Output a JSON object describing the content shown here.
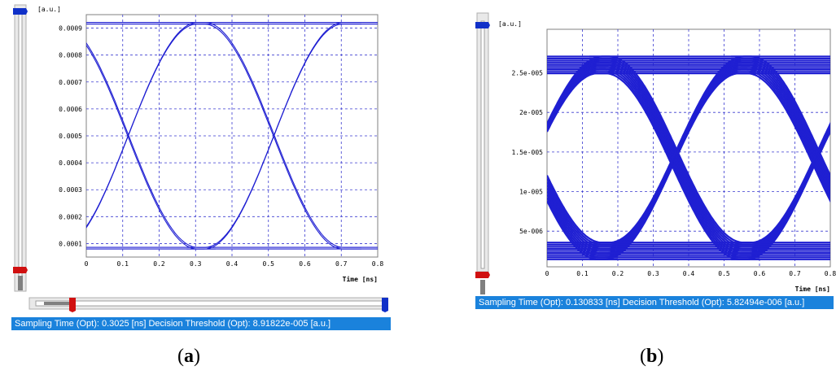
{
  "chart_data": [
    {
      "type": "line",
      "panel": "a",
      "title": "",
      "xlabel": "Time [ns]",
      "ylabel": "[a.u.]",
      "xlim": [
        0,
        0.8
      ],
      "ylim": [
        5e-05,
        0.00095
      ],
      "x_ticks": [
        "0",
        "0.1",
        "0.2",
        "0.3",
        "0.4",
        "0.5",
        "0.6",
        "0.7",
        "0.8"
      ],
      "y_ticks": [
        "0.0001",
        "0.0002",
        "0.0003",
        "0.0004",
        "0.0005",
        "0.0006",
        "0.0007",
        "0.0008",
        "0.0009"
      ],
      "y_tick_values": [
        0.0001,
        0.0002,
        0.0003,
        0.0004,
        0.0005,
        0.0006,
        0.0007,
        0.0008,
        0.0009
      ],
      "grid": true,
      "eye": {
        "low": 8.3e-05,
        "high": 0.000918,
        "crossings": [
          0.115,
          0.515
        ],
        "bit_period": 0.4,
        "color": "#1f1fd2",
        "density": "thin"
      },
      "status_text": "Sampling Time (Opt): 0.3025 [ns] Decision Threshold (Opt): 8.91822e-005 [a.u.]"
    },
    {
      "type": "line",
      "panel": "b",
      "title": "",
      "xlabel": "Time [ns]",
      "ylabel": "[a.u.]",
      "xlim": [
        0,
        0.8
      ],
      "ylim": [
        5e-07,
        3.05e-05
      ],
      "x_ticks": [
        "0",
        "0.1",
        "0.2",
        "0.3",
        "0.4",
        "0.5",
        "0.6",
        "0.7",
        "0.8"
      ],
      "y_ticks": [
        "5e-006",
        "1e-005",
        "1.5e-005",
        "2e-005",
        "2.5e-005"
      ],
      "y_tick_values": [
        5e-06,
        1e-05,
        1.5e-05,
        2e-05,
        2.5e-05
      ],
      "grid": true,
      "eye": {
        "low": 2.5e-06,
        "high": 2.6e-05,
        "crossings": [
          0.36,
          0.76
        ],
        "bit_period": 0.4,
        "color": "#1f1fd2",
        "density": "thick"
      },
      "status_text": "Sampling Time (Opt): 0.130833 [ns] Decision Threshold (Opt): 5.82494e-006 [a.u.]"
    }
  ],
  "captions": {
    "a": "a",
    "b": "b"
  }
}
